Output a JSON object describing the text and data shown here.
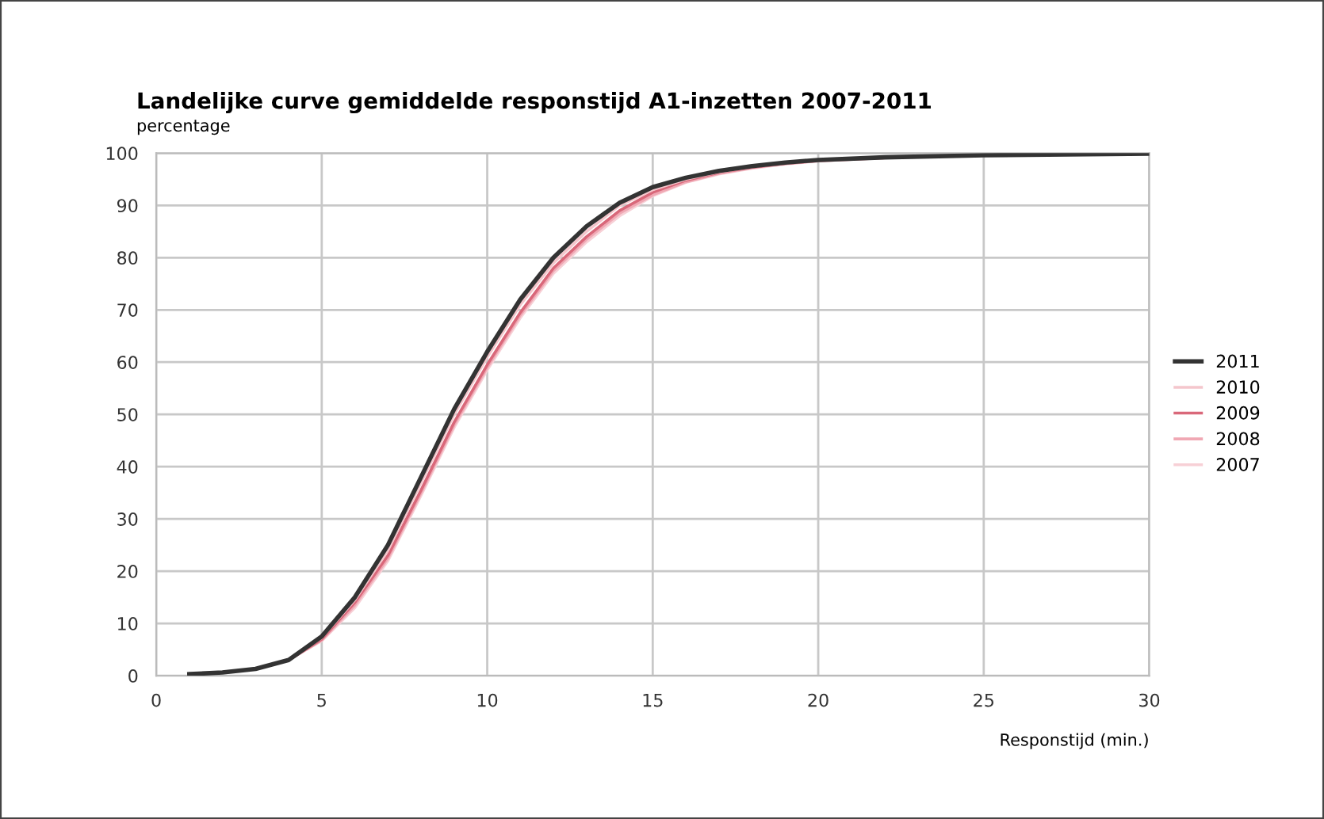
{
  "chart_data": {
    "type": "line",
    "title": "Landelijke curve gemiddelde responstijd A1-inzetten 2007-2011",
    "ylabel": "percentage",
    "xlabel": "Responstijd (min.)",
    "x": [
      1,
      2,
      3,
      4,
      5,
      6,
      7,
      8,
      9,
      10,
      11,
      12,
      13,
      14,
      15,
      16,
      17,
      18,
      19,
      20,
      22,
      25,
      30
    ],
    "series": [
      {
        "name": "2011",
        "color": "#333333",
        "values": [
          0.3,
          0.6,
          1.3,
          3,
          7.5,
          15,
          25,
          38,
          51,
          62,
          72,
          80,
          86,
          90.5,
          93.5,
          95.3,
          96.6,
          97.5,
          98.2,
          98.7,
          99.2,
          99.6,
          99.9
        ]
      },
      {
        "name": "2010",
        "color": "#f4c6cc",
        "values": [
          null,
          null,
          1.3,
          3,
          7.3,
          14.5,
          24,
          37,
          50,
          61,
          71,
          79,
          85,
          90,
          93,
          95,
          96.4,
          97.4,
          98.1,
          98.6,
          99.2,
          null,
          null
        ]
      },
      {
        "name": "2009",
        "color": "#d9687a",
        "values": [
          null,
          null,
          1.3,
          3,
          7,
          14,
          23,
          35.5,
          48.5,
          59.5,
          69.5,
          78,
          84,
          89,
          92.5,
          94.8,
          96.3,
          97.3,
          98,
          98.6,
          99.2,
          null,
          null
        ]
      },
      {
        "name": "2008",
        "color": "#f0a8b4",
        "values": [
          null,
          null,
          1.3,
          3,
          6.8,
          13.5,
          22.5,
          35,
          48,
          59,
          69,
          77.5,
          83.5,
          88.5,
          92,
          94.5,
          96.1,
          97.2,
          98,
          98.5,
          99.1,
          null,
          null
        ]
      },
      {
        "name": "2007",
        "color": "#f7d0d6",
        "values": [
          null,
          null,
          1.3,
          3,
          6.7,
          13,
          22,
          34.5,
          47.5,
          58.5,
          68.5,
          77,
          83,
          88,
          91.8,
          94.4,
          96,
          97.1,
          97.9,
          98.5,
          99.1,
          null,
          null
        ]
      }
    ],
    "xlim": [
      0,
      30
    ],
    "xticks": [
      0,
      5,
      10,
      15,
      20,
      25,
      30
    ],
    "ylim": [
      0,
      100
    ],
    "yticks": [
      0,
      10,
      20,
      30,
      40,
      50,
      60,
      70,
      80,
      90,
      100
    ],
    "grid": true,
    "legend": "right",
    "marker": "none",
    "line_style": "solid"
  }
}
